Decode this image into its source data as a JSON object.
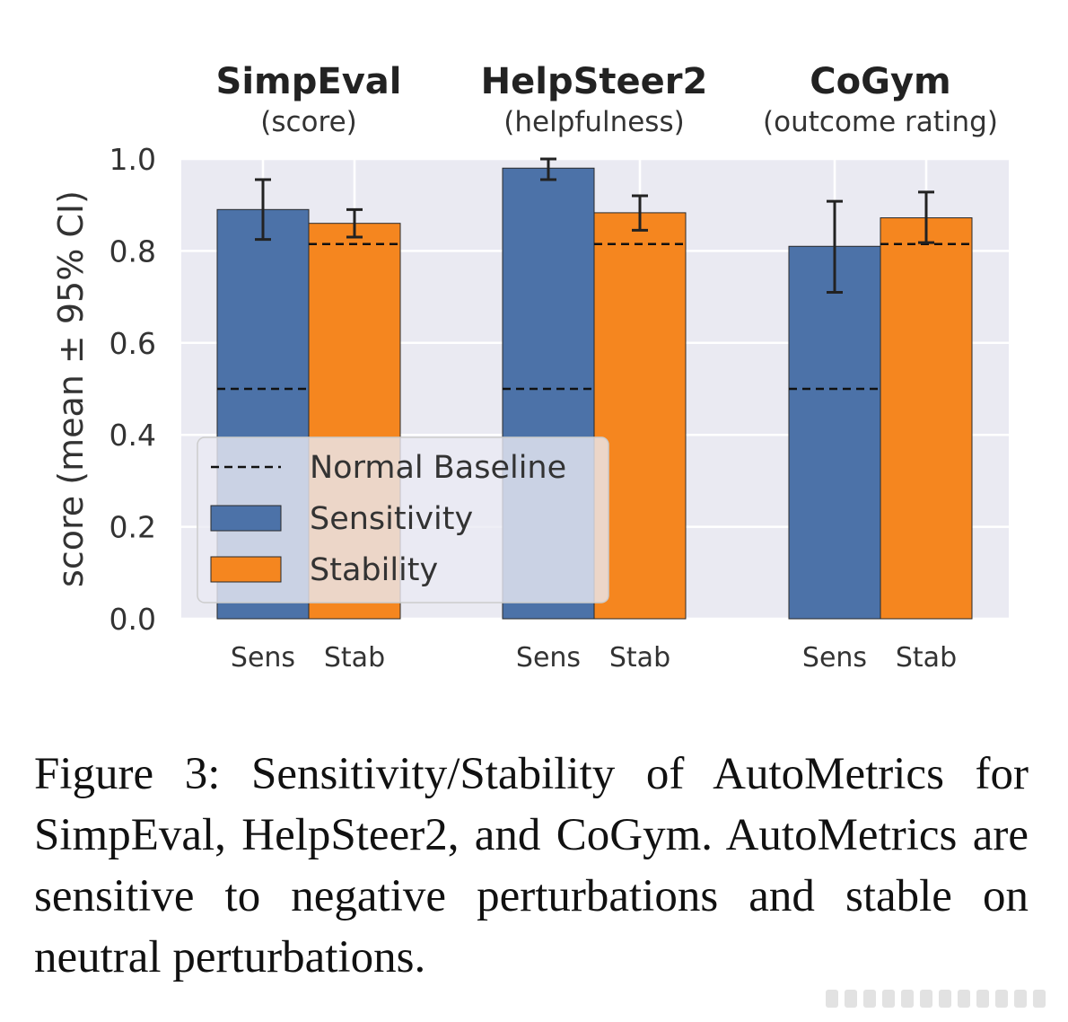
{
  "chart_data": {
    "type": "bar",
    "ylabel": "score (mean ± 95% CI)",
    "ylim": [
      0,
      1.0
    ],
    "yticks": [
      "0.0",
      "0.2",
      "0.4",
      "0.6",
      "0.8",
      "1.0"
    ],
    "grid": true,
    "legend": {
      "placement": "lower-left",
      "entries": [
        "Normal Baseline",
        "Sensitivity",
        "Stability"
      ]
    },
    "colors": {
      "Sensitivity": "#4c72a8",
      "Stability": "#f5861f",
      "baseline": "#111111"
    },
    "groups": [
      {
        "title": "SimpEval",
        "subtitle": "(score)",
        "tick_labels": [
          "Sens",
          "Stab"
        ],
        "sensitivity": {
          "mean": 0.89,
          "ci_low": 0.825,
          "ci_high": 0.955,
          "baseline": 0.5
        },
        "stability": {
          "mean": 0.86,
          "ci_low": 0.83,
          "ci_high": 0.89,
          "baseline": 0.815
        }
      },
      {
        "title": "HelpSteer2",
        "subtitle": "(helpfulness)",
        "tick_labels": [
          "Sens",
          "Stab"
        ],
        "sensitivity": {
          "mean": 0.98,
          "ci_low": 0.955,
          "ci_high": 1.005,
          "baseline": 0.5
        },
        "stability": {
          "mean": 0.883,
          "ci_low": 0.845,
          "ci_high": 0.92,
          "baseline": 0.815
        }
      },
      {
        "title": "CoGym",
        "subtitle": "(outcome rating)",
        "tick_labels": [
          "Sens",
          "Stab"
        ],
        "sensitivity": {
          "mean": 0.81,
          "ci_low": 0.71,
          "ci_high": 0.908,
          "baseline": 0.5
        },
        "stability": {
          "mean": 0.872,
          "ci_low": 0.818,
          "ci_high": 0.928,
          "baseline": 0.815
        }
      }
    ]
  },
  "caption": "Figure 3:  Sensitivity/Stability of AutoMetrics for SimpEval, HelpSteer2, and CoGym. AutoMetrics are sensitive to negative perturbations and stable on neutral perturbations."
}
